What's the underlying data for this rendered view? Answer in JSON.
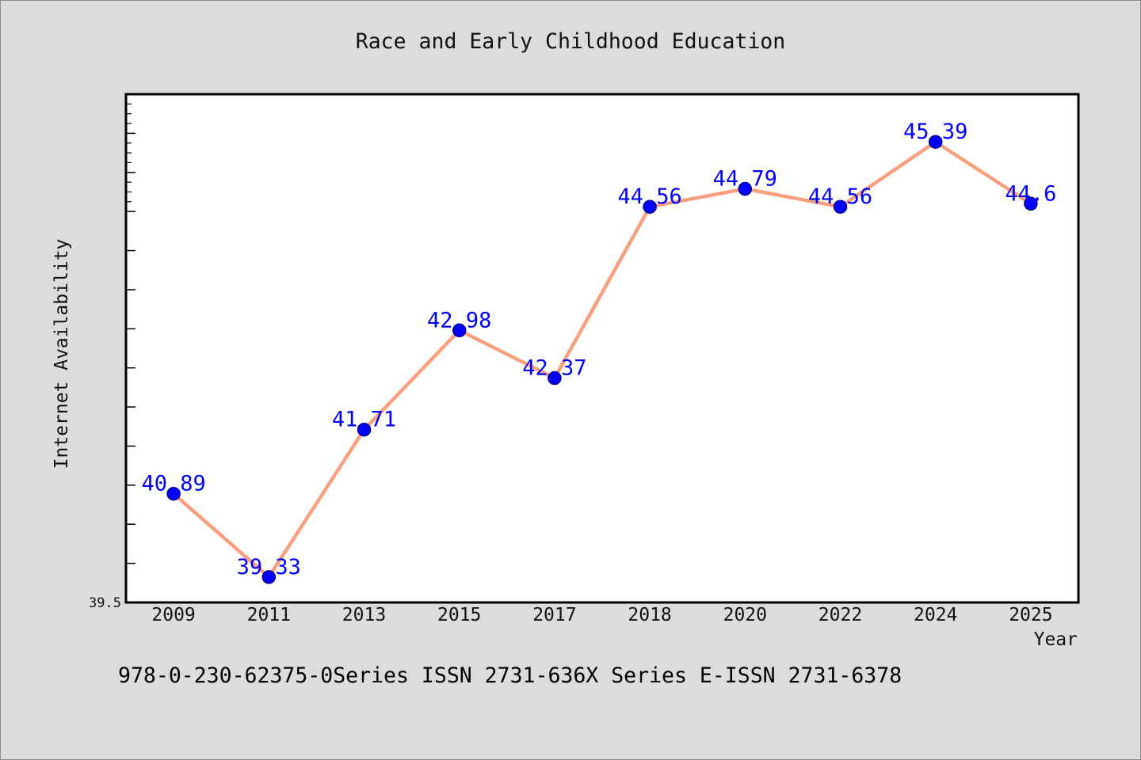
{
  "chart_data": {
    "type": "line",
    "title": "Race and Early Childhood Education",
    "xlabel": "Year",
    "ylabel": "Internet Availability",
    "categories": [
      "2009",
      "2011",
      "2013",
      "2015",
      "2017",
      "2018",
      "2020",
      "2022",
      "2024",
      "2025"
    ],
    "values": [
      40.89,
      39.33,
      41.71,
      42.98,
      42.37,
      44.56,
      44.79,
      44.56,
      45.39,
      44.6
    ],
    "ylim": [
      39.5,
      46.0
    ],
    "y_major_step": 0.5,
    "y_minor_step": 0.125,
    "y_ticks": [
      {
        "value": 39.5,
        "label": "39.5"
      }
    ],
    "grid": false,
    "show_legend": false,
    "show_data_labels": true,
    "colors": {
      "line": "#f8a07d",
      "marker": "#0000ff",
      "marker_edge": "#00008b",
      "data_label": "#0000ff"
    }
  },
  "footer": {
    "text": "978-0-230-62375-0Series ISSN 2731-636X Series E-ISSN 2731-6378"
  },
  "colors": {
    "figure_background": "#dcdcdc",
    "plot_background": "#ffffff",
    "axis": "#000000"
  }
}
